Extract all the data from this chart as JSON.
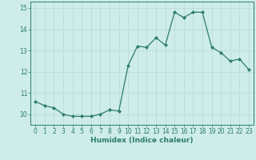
{
  "x": [
    0,
    1,
    2,
    3,
    4,
    5,
    6,
    7,
    8,
    9,
    10,
    11,
    12,
    13,
    14,
    15,
    16,
    17,
    18,
    19,
    20,
    21,
    22,
    23
  ],
  "y": [
    10.6,
    10.4,
    10.3,
    10.0,
    9.9,
    9.9,
    9.9,
    10.0,
    10.2,
    10.15,
    12.3,
    13.2,
    13.15,
    13.6,
    13.25,
    14.8,
    14.55,
    14.8,
    14.8,
    13.15,
    12.9,
    12.5,
    12.6,
    12.1
  ],
  "xlabel": "Humidex (Indice chaleur)",
  "xlim": [
    -0.5,
    23.5
  ],
  "ylim": [
    9.5,
    15.3
  ],
  "yticks": [
    10,
    11,
    12,
    13,
    14,
    15
  ],
  "xtick_labels": [
    "0",
    "1",
    "2",
    "3",
    "4",
    "5",
    "6",
    "7",
    "8",
    "9",
    "10",
    "11",
    "12",
    "13",
    "14",
    "15",
    "16",
    "17",
    "18",
    "19",
    "20",
    "21",
    "22",
    "23"
  ],
  "line_color": "#2d7d6e",
  "marker_color": "#2d7d6e",
  "bg_color": "#cdecea",
  "grid_color": "#b8d8d5",
  "axis_color": "#2d7d6e",
  "xlabel_fontsize": 6.5,
  "tick_fontsize": 5.5
}
